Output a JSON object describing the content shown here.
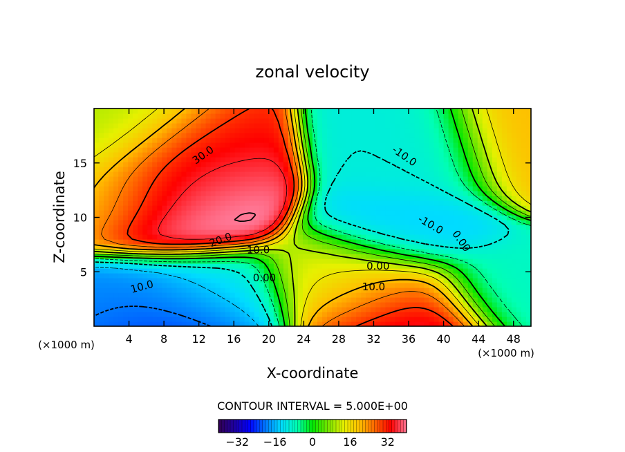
{
  "chart_data": {
    "type": "heatmap",
    "title": "zonal velocity",
    "xlabel": "X-coordinate",
    "ylabel": "Z-coordinate",
    "x_unit": "(×1000 m)",
    "z_unit": "(×1000 m)",
    "xlim": [
      0,
      50
    ],
    "ylim": [
      0,
      20
    ],
    "x_ticks": [
      4,
      8,
      12,
      16,
      20,
      24,
      28,
      32,
      36,
      40,
      44,
      48
    ],
    "y_ticks": [
      5,
      10,
      15
    ],
    "contour_interval_text": "CONTOUR INTERVAL = 5.000E+00",
    "contour_interval": 5,
    "colorbar": {
      "range": [
        -40,
        40
      ],
      "ticks": [
        -32,
        -16,
        0,
        16,
        32
      ],
      "palette": [
        "#320050",
        "#1e00a0",
        "#0000ff",
        "#0078ff",
        "#00dcff",
        "#00ffb4",
        "#00e600",
        "#78e600",
        "#e6f000",
        "#ffbe00",
        "#ff6400",
        "#ff0000",
        "#ff7896"
      ]
    },
    "contour_labels": [
      {
        "text": "30.0",
        "x": 12.5,
        "z": 15.7,
        "angle": -35
      },
      {
        "text": "20.0",
        "x": 14.5,
        "z": 7.9,
        "angle": -20
      },
      {
        "text": "10.0",
        "x": 18.8,
        "z": 7.0,
        "angle": 0
      },
      {
        "text": "10.0",
        "x": 5.5,
        "z": 3.6,
        "angle": -15
      },
      {
        "text": "0.00",
        "x": 19.5,
        "z": 4.4,
        "angle": 0
      },
      {
        "text": "0.00",
        "x": 32.5,
        "z": 5.5,
        "angle": 0
      },
      {
        "text": "10.0",
        "x": 32.0,
        "z": 3.6,
        "angle": 0
      },
      {
        "text": "-10.0",
        "x": 35.5,
        "z": 15.6,
        "angle": 35
      },
      {
        "text": "-10.0",
        "x": 38.5,
        "z": 9.3,
        "angle": 30
      },
      {
        "text": "0.00",
        "x": 42.0,
        "z": 7.8,
        "angle": 55
      }
    ],
    "field_features": [
      {
        "value": 42,
        "x": 9.5,
        "z": 13.3
      },
      {
        "value": 42,
        "x": 10.0,
        "z": 11.0
      },
      {
        "value": 30,
        "x": 9.5,
        "z": 14.5
      },
      {
        "value": 15,
        "x": 4.0,
        "z": 12.5
      },
      {
        "value": 10,
        "x": 2.0,
        "z": 16.5
      },
      {
        "value": 20,
        "x": 50.0,
        "z": 16.0
      },
      {
        "value": -10,
        "x": 37.5,
        "z": 15.0
      },
      {
        "value": -14,
        "x": 36.0,
        "z": 9.0
      },
      {
        "value": -28,
        "x": 9.5,
        "z": 0.5
      },
      {
        "value": -18,
        "x": 6.0,
        "z": 1.5
      },
      {
        "value": -10,
        "x": 13.0,
        "z": 2.5
      },
      {
        "value": 40,
        "x": 35.5,
        "z": 0.6
      },
      {
        "value": 25,
        "x": 33.0,
        "z": 2.5
      },
      {
        "value": 12,
        "x": 29.5,
        "z": 4.2
      },
      {
        "value": -8,
        "x": 47.5,
        "z": 3.5
      }
    ]
  }
}
